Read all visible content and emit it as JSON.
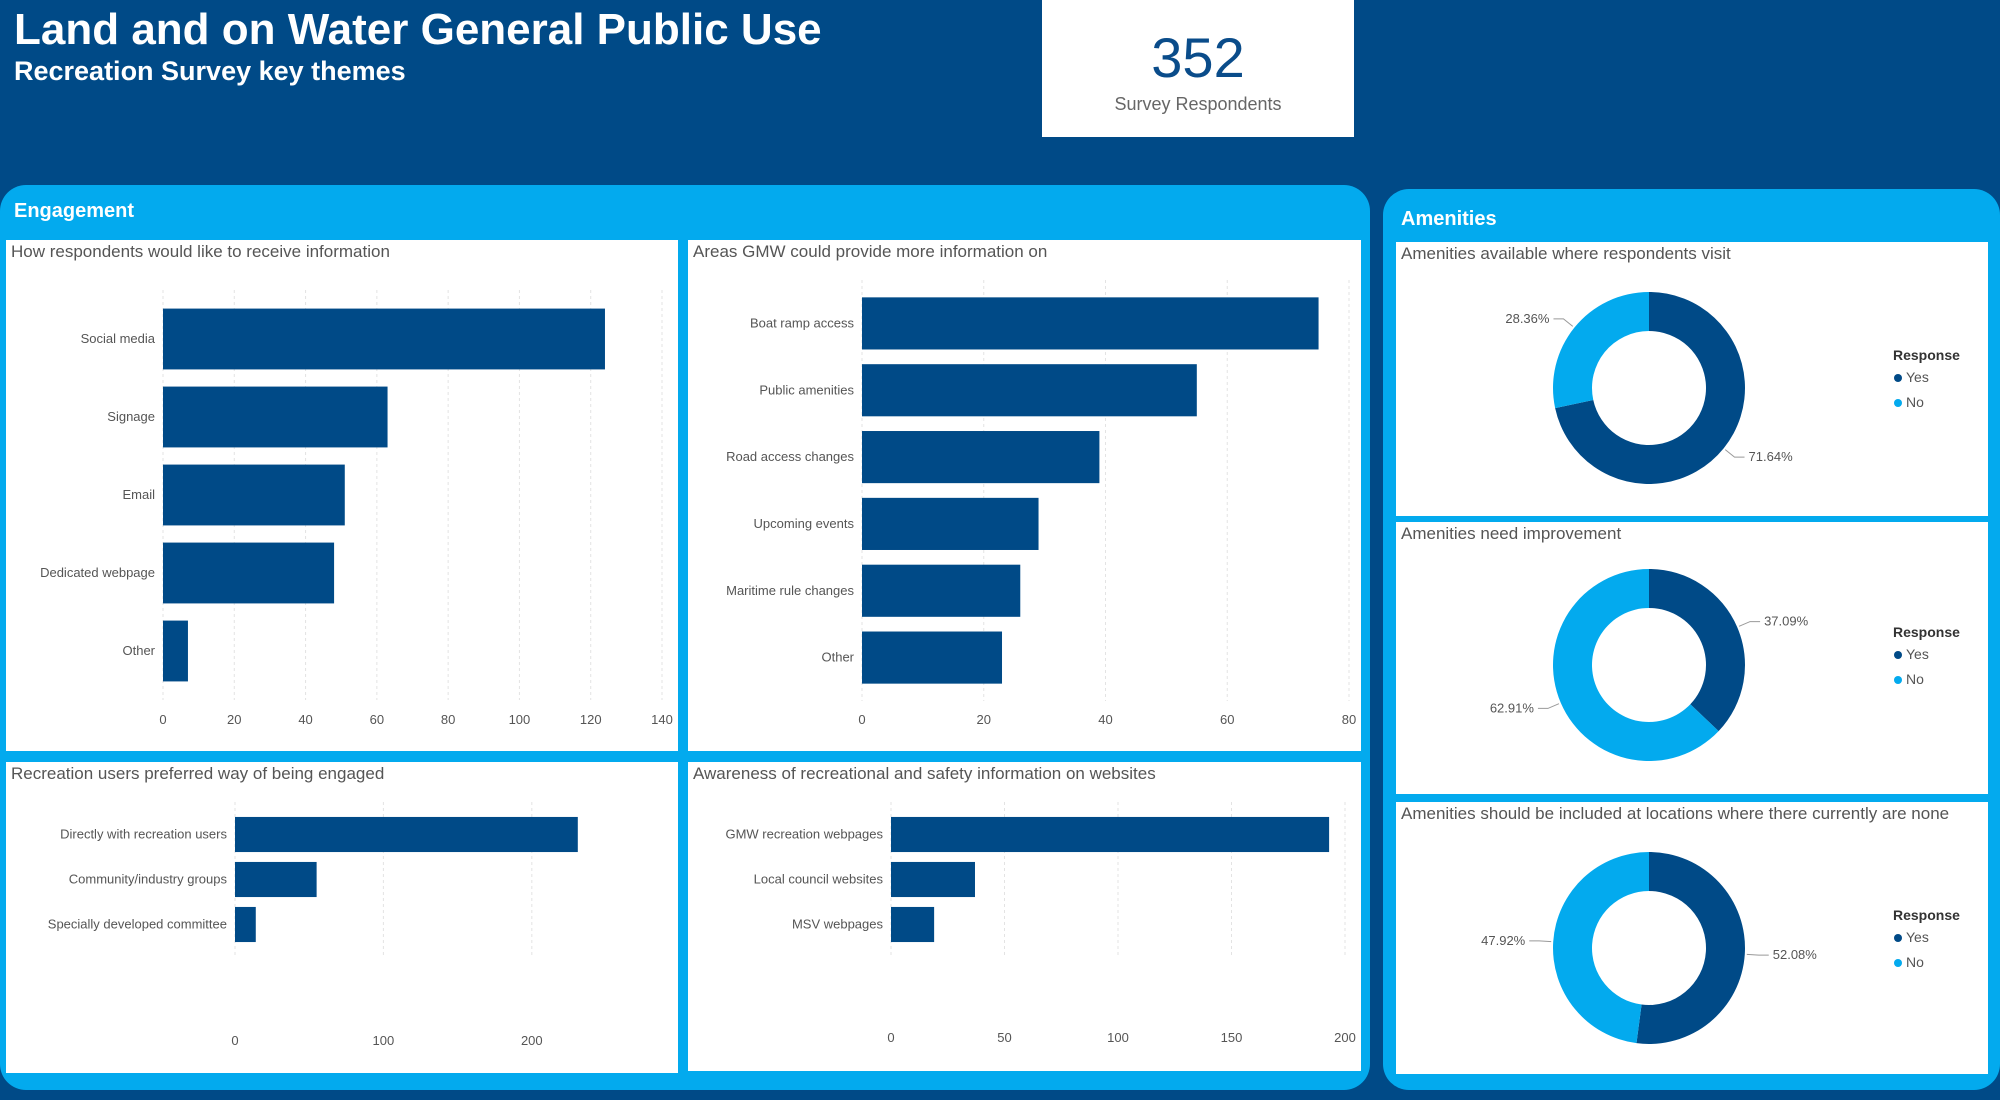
{
  "header": {
    "title": "Land and on Water General Public Use",
    "subtitle": "Recreation Survey key themes"
  },
  "kpi": {
    "value": "352",
    "label": "Survey Respondents"
  },
  "groups": {
    "engagement": "Engagement",
    "amenities": "Amenities"
  },
  "colors": {
    "dark": "#004a87",
    "light": "#03aaee"
  },
  "chart_data": [
    {
      "id": "receive",
      "type": "bar",
      "orientation": "horizontal",
      "title": "How respondents would like to receive information",
      "categories": [
        "Social media",
        "Signage",
        "Email",
        "Dedicated webpage",
        "Other"
      ],
      "values": [
        124,
        63,
        51,
        48,
        7
      ],
      "xlim": [
        0,
        140
      ],
      "ticks": [
        0,
        20,
        40,
        60,
        80,
        100,
        120,
        140
      ]
    },
    {
      "id": "areas",
      "type": "bar",
      "orientation": "horizontal",
      "title": "Areas GMW could provide more information on",
      "categories": [
        "Boat ramp access",
        "Public amenities",
        "Road access changes",
        "Upcoming events",
        "Maritime rule changes",
        "Other"
      ],
      "values": [
        75,
        55,
        39,
        29,
        26,
        23
      ],
      "xlim": [
        0,
        80
      ],
      "ticks": [
        0,
        20,
        40,
        60,
        80
      ]
    },
    {
      "id": "engaged",
      "type": "bar",
      "orientation": "horizontal",
      "title": "Recreation users preferred way of being engaged",
      "categories": [
        "Directly with recreation users",
        "Community/industry groups",
        "Specially developed committee"
      ],
      "values": [
        231,
        55,
        14
      ],
      "xlim": [
        0,
        250
      ],
      "ticks": [
        0,
        100,
        200
      ]
    },
    {
      "id": "awareness",
      "type": "bar",
      "orientation": "horizontal",
      "title": "Awareness of recreational and safety information on websites",
      "categories": [
        "GMW recreation webpages",
        "Local council websites",
        "MSV webpages"
      ],
      "values": [
        193,
        37,
        19
      ],
      "xlim": [
        0,
        200
      ],
      "ticks": [
        0,
        50,
        100,
        150,
        200
      ]
    },
    {
      "id": "avail",
      "type": "pie",
      "donut": true,
      "title": "Amenities available where respondents visit",
      "legend_title": "Response",
      "labels": [
        "Yes",
        "No"
      ],
      "values": [
        71.64,
        28.36
      ],
      "value_labels": [
        "71.64%",
        "28.36%"
      ]
    },
    {
      "id": "improve",
      "type": "pie",
      "donut": true,
      "title": "Amenities need improvement",
      "legend_title": "Response",
      "labels": [
        "Yes",
        "No"
      ],
      "values": [
        37.09,
        62.91
      ],
      "value_labels": [
        "37.09%",
        "62.91%"
      ]
    },
    {
      "id": "include",
      "type": "pie",
      "donut": true,
      "title": "Amenities should be included at locations where there currently are none",
      "legend_title": "Response",
      "labels": [
        "Yes",
        "No"
      ],
      "values": [
        52.08,
        47.92
      ],
      "value_labels": [
        "52.08%",
        "47.92%"
      ]
    }
  ]
}
